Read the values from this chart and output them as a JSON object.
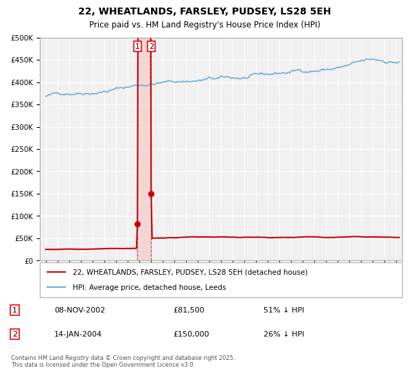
{
  "title": "22, WHEATLANDS, FARSLEY, PUDSEY, LS28 5EH",
  "subtitle": "Price paid vs. HM Land Registry's House Price Index (HPI)",
  "hpi_color": "#6baed6",
  "price_color": "#cc0000",
  "vline1_x": 2002.856,
  "vline2_x": 2004.038,
  "point1_x": 2002.856,
  "point1_y": 81500,
  "point2_x": 2004.038,
  "point2_y": 150000,
  "ylim": [
    0,
    500000
  ],
  "xlim": [
    1994.5,
    2025.5
  ],
  "legend_label_red": "22, WHEATLANDS, FARSLEY, PUDSEY, LS28 5EH (detached house)",
  "legend_label_blue": "HPI: Average price, detached house, Leeds",
  "table_rows": [
    {
      "num": "1",
      "date": "08-NOV-2002",
      "price": "£81,500",
      "hpi": "51% ↓ HPI"
    },
    {
      "num": "2",
      "date": "14-JAN-2004",
      "price": "£150,000",
      "hpi": "26% ↓ HPI"
    }
  ],
  "footnote": "Contains HM Land Registry data © Crown copyright and database right 2025.\nThis data is licensed under the Open Government Licence v3.0.",
  "background_color": "#ffffff",
  "plot_bg_color": "#f0f0f0",
  "grid_color": "#ffffff",
  "shade_color": "#f5c6c6"
}
